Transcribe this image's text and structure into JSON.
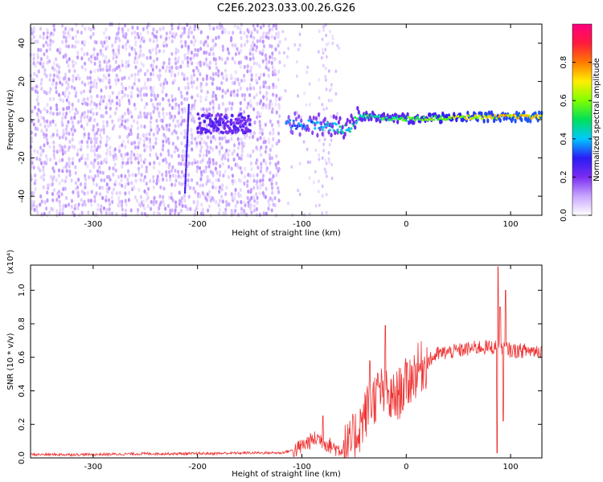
{
  "title": "C2E6.2023.033.00.26.G26",
  "chart_data": [
    {
      "type": "heatmap",
      "xlabel": "Height of straight line (km)",
      "ylabel": "Frequency (Hz)",
      "xlim": [
        -360,
        130
      ],
      "ylim": [
        -50,
        50
      ],
      "x_ticks": [
        -300,
        -200,
        -100,
        0,
        100
      ],
      "y_ticks": [
        -40,
        -20,
        0,
        20,
        40
      ],
      "colorbar": {
        "label": "Normalized spectral amplitude",
        "range": [
          0,
          1
        ],
        "ticks": [
          "0.0",
          "0.2",
          "0.4",
          "0.6",
          "0.8"
        ],
        "tick_values": [
          0.0,
          0.2,
          0.4,
          0.6,
          0.8
        ],
        "colors": [
          "#ffffff",
          "#c9a6ff",
          "#7b2cf0",
          "#2a1cf5",
          "#00c8ff",
          "#00e05a",
          "#7fff00",
          "#ffee00",
          "#ff7a00",
          "#ff1a3c",
          "#ff0080"
        ]
      },
      "regions": [
        {
          "name": "noise",
          "x_range": [
            -360,
            -120
          ],
          "freq_spread": 50,
          "amplitude": 0.12
        },
        {
          "name": "sparse",
          "x_range": [
            -120,
            -65
          ],
          "freq_spread": 50,
          "amplitude": 0.05
        },
        {
          "name": "signal",
          "x_range": [
            -115,
            130
          ],
          "center_freq": [
            [
              -115,
              -2
            ],
            [
              -80,
              -3
            ],
            [
              -55,
              -5
            ],
            [
              -45,
              2
            ],
            [
              -20,
              1
            ],
            [
              0,
              0.5
            ],
            [
              80,
              1.5
            ],
            [
              130,
              1.5
            ]
          ],
          "amplitude": [
            [
              -115,
              0.35
            ],
            [
              -55,
              0.45
            ],
            [
              -45,
              0.5
            ],
            [
              0,
              0.55
            ],
            [
              60,
              0.7
            ],
            [
              130,
              0.75
            ]
          ]
        }
      ]
    },
    {
      "type": "line",
      "xlabel": "Height of straight line (km)",
      "ylabel": "SNR (10 * v/v)",
      "scale_label": "(x10⁴)",
      "xlim": [
        -360,
        130
      ],
      "ylim": [
        0,
        1.15
      ],
      "x_ticks": [
        -300,
        -200,
        -100,
        0,
        100
      ],
      "y_ticks": [
        "0.0",
        "0.2",
        "0.4",
        "0.6",
        "0.8",
        "1.0"
      ],
      "y_tick_values": [
        0.0,
        0.2,
        0.4,
        0.6,
        0.8,
        1.0
      ],
      "series": [
        {
          "color": "#ee3333",
          "x": [
            -360,
            -300,
            -250,
            -200,
            -150,
            -120,
            -105,
            -95,
            -85,
            -75,
            -65,
            -55,
            -50,
            -45,
            -40,
            -35,
            -30,
            -25,
            -20,
            -15,
            -10,
            -5,
            0,
            10,
            20,
            30,
            40,
            50,
            60,
            70,
            80,
            85,
            88,
            90,
            92,
            95,
            100,
            110,
            120,
            130
          ],
          "values": [
            0.02,
            0.02,
            0.025,
            0.025,
            0.03,
            0.03,
            0.05,
            0.09,
            0.12,
            0.08,
            0.05,
            0.06,
            0.12,
            0.18,
            0.25,
            0.32,
            0.36,
            0.4,
            0.38,
            0.34,
            0.36,
            0.4,
            0.44,
            0.52,
            0.57,
            0.62,
            0.63,
            0.64,
            0.65,
            0.66,
            0.66,
            0.66,
            0.66,
            0.68,
            0.66,
            0.66,
            0.64,
            0.64,
            0.64,
            0.64
          ],
          "spikes": [
            [
              -20,
              0.79
            ],
            [
              -35,
              0.58
            ],
            [
              -80,
              0.25
            ],
            [
              88,
              1.14
            ],
            [
              90,
              0.9
            ],
            [
              93,
              0.22
            ],
            [
              95,
              1.0
            ],
            [
              87,
              0.03
            ]
          ]
        }
      ]
    }
  ]
}
